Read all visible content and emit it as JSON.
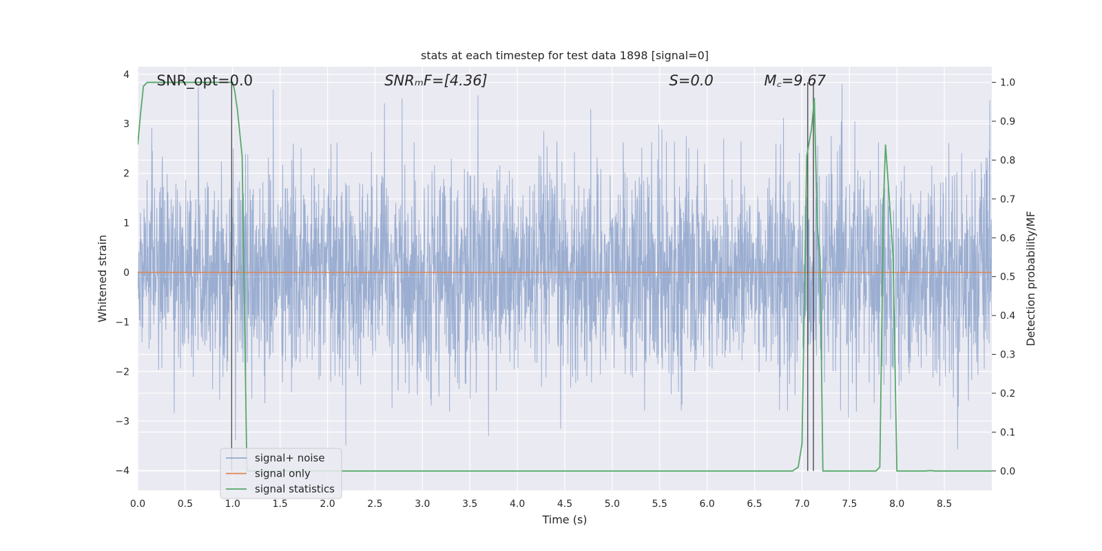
{
  "chart_data": {
    "type": "line",
    "title": "stats at each timestep for test data 1898 [signal=0]",
    "xlabel": "Time (s)",
    "ylabel": "Whitened strain",
    "y2label": "Detection probability/MF",
    "xlim": [
      0.0,
      9.0
    ],
    "ylim": [
      -4.4,
      4.15
    ],
    "y2lim": [
      -0.05,
      1.04
    ],
    "xticks": [
      "0.0",
      "0.5",
      "1.0",
      "1.5",
      "2.0",
      "2.5",
      "3.0",
      "3.5",
      "4.0",
      "4.5",
      "5.0",
      "5.5",
      "6.0",
      "6.5",
      "7.0",
      "7.5",
      "8.0",
      "8.5"
    ],
    "yticks": [
      "4",
      "3",
      "2",
      "1",
      "0",
      "−1",
      "−2",
      "−3",
      "−4"
    ],
    "y2ticks": [
      "1.0",
      "0.9",
      "0.8",
      "0.7",
      "0.6",
      "0.5",
      "0.4",
      "0.3",
      "0.2",
      "0.1",
      "0.0"
    ],
    "grid": true,
    "legend_position": "lower-left",
    "annotations": [
      {
        "id": "snr-opt",
        "text": "SNR_opt=0.0",
        "x": 0.2
      },
      {
        "id": "snr-mf",
        "text": "SNRₘF=[4.36]",
        "x": 2.6
      },
      {
        "id": "s-val",
        "text": "S=0.0",
        "x": 5.6
      },
      {
        "id": "mc",
        "text": "M꜀=9.67",
        "x": 6.6
      }
    ],
    "series": [
      {
        "name": "signal+ noise",
        "color": "#4c72b0",
        "axis": "left",
        "kind": "noise",
        "amplitude_envelope": [
          -3.9,
          3.8
        ]
      },
      {
        "name": "signal only",
        "color": "#dd8452",
        "axis": "left",
        "constant": 0.0
      },
      {
        "name": "signal statistics",
        "color": "#55a868",
        "axis": "right",
        "x": [
          0.0,
          0.03,
          0.06,
          0.1,
          0.2,
          0.5,
          0.8,
          0.98,
          1.0,
          1.02,
          1.05,
          1.1,
          1.15,
          1.2,
          2.0,
          3.0,
          4.0,
          5.0,
          6.0,
          6.9,
          6.96,
          7.0,
          7.05,
          7.1,
          7.13,
          7.16,
          7.19,
          7.22,
          7.27,
          7.5,
          7.78,
          7.82,
          7.86,
          7.88,
          7.92,
          7.96,
          8.0,
          8.3,
          8.35,
          8.4,
          8.7,
          9.0
        ],
        "values": [
          0.84,
          0.92,
          0.99,
          1.0,
          1.0,
          1.0,
          1.0,
          1.0,
          1.0,
          0.98,
          0.93,
          0.81,
          0.0,
          0.0,
          0.0,
          0.0,
          0.0,
          0.0,
          0.0,
          0.0,
          0.01,
          0.07,
          0.81,
          0.88,
          0.96,
          0.63,
          0.55,
          0.0,
          0.0,
          0.0,
          0.0,
          0.01,
          0.7,
          0.84,
          0.7,
          0.55,
          0.0,
          0.0,
          0.001,
          0.0,
          0.0,
          0.0
        ]
      },
      {
        "name": "",
        "color": "#555555",
        "axis": "right",
        "kind": "vlines",
        "x": [
          0.99,
          7.06,
          7.12
        ]
      }
    ]
  },
  "legend": {
    "items": [
      {
        "label": "signal+ noise",
        "color": "#4c72b0"
      },
      {
        "label": "signal only",
        "color": "#dd8452"
      },
      {
        "label": "signal statistics",
        "color": "#55a868"
      }
    ]
  }
}
